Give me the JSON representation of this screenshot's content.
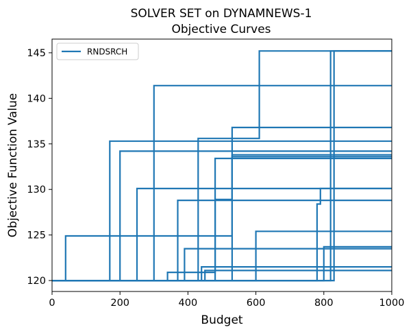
{
  "chart_data": {
    "type": "line",
    "title": "SOLVER SET on DYNAMNEWS-1",
    "subtitle": "Objective Curves",
    "xlabel": "Budget",
    "ylabel": "Objective Function Value",
    "xlim": [
      0,
      1000
    ],
    "ylim": [
      118.8,
      146.5
    ],
    "x_ticks": [
      0,
      200,
      400,
      600,
      800,
      1000
    ],
    "y_ticks": [
      120,
      125,
      130,
      135,
      140,
      145
    ],
    "x_tick_labels": [
      "0",
      "200",
      "400",
      "600",
      "800",
      "1000"
    ],
    "y_tick_labels": [
      "120",
      "125",
      "130",
      "135",
      "140",
      "145"
    ],
    "grid": false,
    "legend_position": "top-left",
    "series": [
      {
        "name": "RNDSRCH",
        "color": "#1f77b4",
        "step_curves": [
          [
            [
              0,
              120
            ],
            [
              40,
              120
            ],
            [
              40,
              124.9
            ],
            [
              530,
              124.9
            ],
            [
              530,
              136.8
            ],
            [
              1000,
              136.8
            ]
          ],
          [
            [
              0,
              120
            ],
            [
              170,
              120
            ],
            [
              170,
              135.3
            ],
            [
              1000,
              135.3
            ]
          ],
          [
            [
              0,
              120
            ],
            [
              200,
              120
            ],
            [
              200,
              134.2
            ],
            [
              1000,
              134.2
            ]
          ],
          [
            [
              0,
              120
            ],
            [
              250,
              120
            ],
            [
              250,
              130.1
            ],
            [
              1000,
              130.1
            ]
          ],
          [
            [
              0,
              120
            ],
            [
              300,
              120
            ],
            [
              300,
              141.4
            ],
            [
              1000,
              141.4
            ]
          ],
          [
            [
              0,
              120
            ],
            [
              340,
              120
            ],
            [
              340,
              120.9
            ],
            [
              480,
              120.9
            ],
            [
              480,
              133.4
            ],
            [
              1000,
              133.4
            ]
          ],
          [
            [
              0,
              120
            ],
            [
              370,
              120
            ],
            [
              370,
              128.8
            ],
            [
              1000,
              128.8
            ]
          ],
          [
            [
              0,
              120
            ],
            [
              390,
              120
            ],
            [
              390,
              123.5
            ],
            [
              1000,
              123.5
            ]
          ],
          [
            [
              0,
              120
            ],
            [
              430,
              120
            ],
            [
              430,
              135.6
            ],
            [
              610,
              135.6
            ],
            [
              610,
              145.2
            ],
            [
              1000,
              145.2
            ]
          ],
          [
            [
              0,
              120
            ],
            [
              440,
              120
            ],
            [
              440,
              121.5
            ],
            [
              1000,
              121.5
            ]
          ],
          [
            [
              0,
              120
            ],
            [
              450,
              120
            ],
            [
              450,
              121.1
            ],
            [
              1000,
              121.1
            ]
          ],
          [
            [
              0,
              120
            ],
            [
              480,
              120
            ],
            [
              480,
              128.9
            ],
            [
              530,
              128.9
            ],
            [
              530,
              133.6
            ],
            [
              1000,
              133.6
            ]
          ],
          [
            [
              0,
              120
            ],
            [
              530,
              120
            ],
            [
              530,
              133.8
            ],
            [
              1000,
              133.8
            ]
          ],
          [
            [
              0,
              120
            ],
            [
              600,
              120
            ],
            [
              600,
              125.4
            ],
            [
              1000,
              125.4
            ]
          ],
          [
            [
              0,
              120
            ],
            [
              780,
              120
            ],
            [
              780,
              128.4
            ],
            [
              790,
              128.4
            ],
            [
              790,
              130.1
            ],
            [
              1000,
              130.1
            ]
          ],
          [
            [
              0,
              120
            ],
            [
              800,
              120
            ],
            [
              800,
              123.7
            ],
            [
              1000,
              123.7
            ]
          ],
          [
            [
              0,
              120
            ],
            [
              820,
              120
            ],
            [
              820,
              145.2
            ],
            [
              1000,
              145.2
            ]
          ],
          [
            [
              0,
              120
            ],
            [
              830,
              120
            ],
            [
              830,
              145.2
            ],
            [
              1000,
              145.2
            ]
          ]
        ]
      }
    ]
  }
}
